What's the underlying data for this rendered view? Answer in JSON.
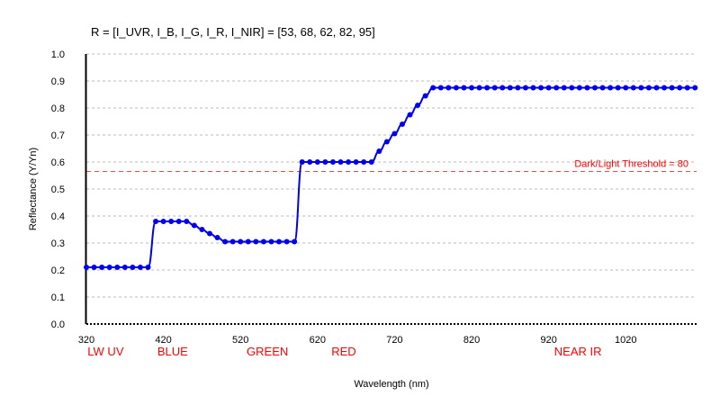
{
  "chart_data": {
    "type": "line",
    "title": "R = [I_UVR, I_B, I_G, I_R, I_NIR] = [53, 68, 62, 82, 95]",
    "xlabel": "Wavelength (nm)",
    "ylabel": "Reflectance (Y/Yn)",
    "xlim": [
      320,
      1112
    ],
    "ylim": [
      0,
      1.0
    ],
    "x_ticks": [
      320,
      420,
      520,
      620,
      720,
      820,
      920,
      1020
    ],
    "y_ticks": [
      0.0,
      0.1,
      0.2,
      0.3,
      0.4,
      0.5,
      0.6,
      0.7,
      0.8,
      0.9,
      1.0
    ],
    "y_tick_labels": [
      "0.0",
      "0.1",
      "0.2",
      "0.3",
      "0.4",
      "0.5",
      "0.6",
      "0.7",
      "0.8",
      "0.9",
      "1.0"
    ],
    "grid": "horizontal dashed",
    "threshold": {
      "label": "Dark/Light Threshold = 80",
      "y": 0.565,
      "color": "#ff4444"
    },
    "band_labels": [
      {
        "text": "LW UV",
        "x": 345
      },
      {
        "text": "BLUE",
        "x": 432
      },
      {
        "text": "GREEN",
        "x": 555
      },
      {
        "text": "RED",
        "x": 654
      },
      {
        "text": "NEAR IR",
        "x": 958
      }
    ],
    "series": [
      {
        "color": "#0000ee",
        "points": [
          [
            320,
            0.21
          ],
          [
            330,
            0.21
          ],
          [
            340,
            0.21
          ],
          [
            350,
            0.21
          ],
          [
            360,
            0.21
          ],
          [
            370,
            0.21
          ],
          [
            380,
            0.21
          ],
          [
            390,
            0.21
          ],
          [
            400,
            0.21
          ],
          [
            410,
            0.38
          ],
          [
            420,
            0.38
          ],
          [
            430,
            0.38
          ],
          [
            440,
            0.38
          ],
          [
            450,
            0.38
          ],
          [
            460,
            0.365
          ],
          [
            470,
            0.35
          ],
          [
            480,
            0.335
          ],
          [
            490,
            0.32
          ],
          [
            500,
            0.305
          ],
          [
            510,
            0.305
          ],
          [
            520,
            0.305
          ],
          [
            530,
            0.305
          ],
          [
            540,
            0.305
          ],
          [
            550,
            0.305
          ],
          [
            560,
            0.305
          ],
          [
            570,
            0.305
          ],
          [
            580,
            0.305
          ],
          [
            590,
            0.305
          ],
          [
            600,
            0.6
          ],
          [
            610,
            0.6
          ],
          [
            620,
            0.6
          ],
          [
            630,
            0.6
          ],
          [
            640,
            0.6
          ],
          [
            650,
            0.6
          ],
          [
            660,
            0.6
          ],
          [
            670,
            0.6
          ],
          [
            680,
            0.6
          ],
          [
            690,
            0.6
          ],
          [
            700,
            0.64
          ],
          [
            710,
            0.675
          ],
          [
            720,
            0.705
          ],
          [
            730,
            0.74
          ],
          [
            740,
            0.775
          ],
          [
            750,
            0.81
          ],
          [
            760,
            0.845
          ],
          [
            770,
            0.875
          ],
          [
            780,
            0.875
          ],
          [
            790,
            0.875
          ],
          [
            800,
            0.875
          ],
          [
            810,
            0.875
          ],
          [
            820,
            0.875
          ],
          [
            830,
            0.875
          ],
          [
            840,
            0.875
          ],
          [
            850,
            0.875
          ],
          [
            860,
            0.875
          ],
          [
            870,
            0.875
          ],
          [
            880,
            0.875
          ],
          [
            890,
            0.875
          ],
          [
            900,
            0.875
          ],
          [
            910,
            0.875
          ],
          [
            920,
            0.875
          ],
          [
            930,
            0.875
          ],
          [
            940,
            0.875
          ],
          [
            950,
            0.875
          ],
          [
            960,
            0.875
          ],
          [
            970,
            0.875
          ],
          [
            980,
            0.875
          ],
          [
            990,
            0.875
          ],
          [
            1000,
            0.875
          ],
          [
            1010,
            0.875
          ],
          [
            1020,
            0.875
          ],
          [
            1030,
            0.875
          ],
          [
            1040,
            0.875
          ],
          [
            1050,
            0.875
          ],
          [
            1060,
            0.875
          ],
          [
            1070,
            0.875
          ],
          [
            1080,
            0.875
          ],
          [
            1090,
            0.875
          ],
          [
            1100,
            0.875
          ],
          [
            1110,
            0.875
          ]
        ]
      }
    ]
  }
}
